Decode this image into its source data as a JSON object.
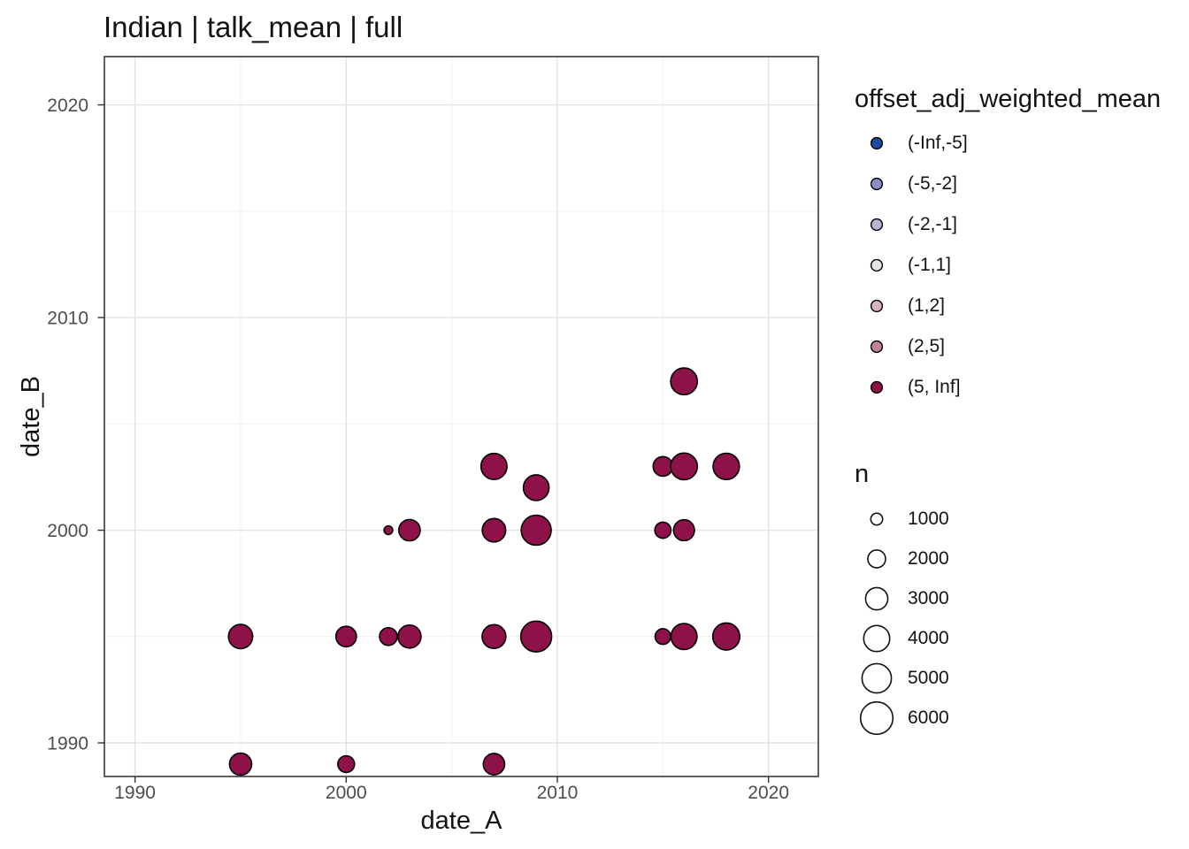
{
  "title": "Indian | talk_mean | full",
  "chart_data": {
    "type": "scatter",
    "subtype": "bubble",
    "title": "Indian | talk_mean | full",
    "xlabel": "date_A",
    "ylabel": "date_B",
    "xlim": [
      1988.55,
      2022.36
    ],
    "ylim": [
      1988.42,
      2022.27
    ],
    "x_ticks": [
      1990,
      2000,
      2010,
      2020
    ],
    "y_ticks": [
      1990,
      2000,
      2010,
      2020
    ],
    "x_minor_ticks": [
      1995,
      2005,
      2015
    ],
    "y_minor_ticks": [
      1995,
      2005,
      2015
    ],
    "grid": "on",
    "legend_position": "right",
    "points": [
      {
        "date_A": 1995,
        "date_B": 1989,
        "n": 3000,
        "bin": "(5, Inf]"
      },
      {
        "date_A": 1995,
        "date_B": 1995,
        "n": 3500,
        "bin": "(5, Inf]"
      },
      {
        "date_A": 2000,
        "date_B": 1989,
        "n": 1800,
        "bin": "(5, Inf]"
      },
      {
        "date_A": 2000,
        "date_B": 1995,
        "n": 2600,
        "bin": "(5, Inf]"
      },
      {
        "date_A": 2002,
        "date_B": 1995,
        "n": 2000,
        "bin": "(5, Inf]"
      },
      {
        "date_A": 2002,
        "date_B": 2000,
        "n": 600,
        "bin": "(5, Inf]"
      },
      {
        "date_A": 2003,
        "date_B": 1995,
        "n": 3200,
        "bin": "(5, Inf]"
      },
      {
        "date_A": 2003,
        "date_B": 2000,
        "n": 2800,
        "bin": "(5, Inf]"
      },
      {
        "date_A": 2007,
        "date_B": 1989,
        "n": 2800,
        "bin": "(5, Inf]"
      },
      {
        "date_A": 2007,
        "date_B": 1995,
        "n": 3400,
        "bin": "(5, Inf]"
      },
      {
        "date_A": 2007,
        "date_B": 2000,
        "n": 3300,
        "bin": "(5, Inf]"
      },
      {
        "date_A": 2007,
        "date_B": 2003,
        "n": 4000,
        "bin": "(5, Inf]"
      },
      {
        "date_A": 2009,
        "date_B": 1995,
        "n": 5500,
        "bin": "(5, Inf]"
      },
      {
        "date_A": 2009,
        "date_B": 2000,
        "n": 5200,
        "bin": "(5, Inf]"
      },
      {
        "date_A": 2009,
        "date_B": 2002,
        "n": 3900,
        "bin": "(5, Inf]"
      },
      {
        "date_A": 2015,
        "date_B": 1995,
        "n": 1600,
        "bin": "(5, Inf]"
      },
      {
        "date_A": 2015,
        "date_B": 2000,
        "n": 1700,
        "bin": "(5, Inf]"
      },
      {
        "date_A": 2015,
        "date_B": 2003,
        "n": 2400,
        "bin": "(5, Inf]"
      },
      {
        "date_A": 2016,
        "date_B": 1995,
        "n": 4000,
        "bin": "(5, Inf]"
      },
      {
        "date_A": 2016,
        "date_B": 2000,
        "n": 2700,
        "bin": "(5, Inf]"
      },
      {
        "date_A": 2016,
        "date_B": 2003,
        "n": 4200,
        "bin": "(5, Inf]"
      },
      {
        "date_A": 2016,
        "date_B": 2007,
        "n": 4200,
        "bin": "(5, Inf]"
      },
      {
        "date_A": 2018,
        "date_B": 1995,
        "n": 4300,
        "bin": "(5, Inf]"
      },
      {
        "date_A": 2018,
        "date_B": 2003,
        "n": 4100,
        "bin": "(5, Inf]"
      }
    ]
  },
  "color_legend": {
    "title": "offset_adj_weighted_mean",
    "items": [
      {
        "label": "(-Inf,-5]",
        "color": "#1d4b9f"
      },
      {
        "label": "(-5,-2]",
        "color": "#8a90c5"
      },
      {
        "label": "(-2,-1]",
        "color": "#b6b7d5"
      },
      {
        "label": "(-1,1]",
        "color": "#e5e3e5"
      },
      {
        "label": "(1,2]",
        "color": "#d6b3bf"
      },
      {
        "label": "(2,5]",
        "color": "#c28493"
      },
      {
        "label": "(5, Inf]",
        "color": "#8f1149"
      }
    ]
  },
  "size_legend": {
    "title": "n",
    "items": [
      "1000",
      "2000",
      "3000",
      "4000",
      "5000",
      "6000"
    ]
  },
  "style": {
    "point_fill": "#8f1149",
    "point_stroke": "#000000",
    "panel_border": "#3a3a3a",
    "tick_color": "#333333",
    "grid_major": "#e3e3e3",
    "grid_minor": "#f0f0f0",
    "tick_label_color": "#4d4d4d",
    "text_color": "#131313"
  }
}
